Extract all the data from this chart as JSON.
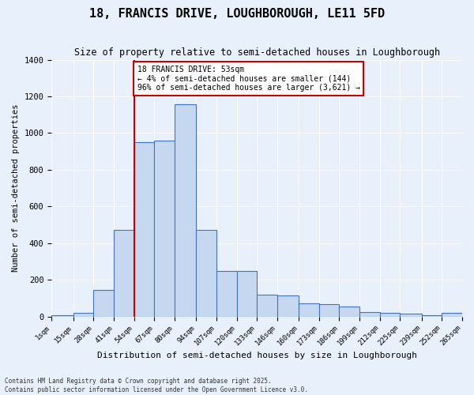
{
  "title": "18, FRANCIS DRIVE, LOUGHBOROUGH, LE11 5FD",
  "subtitle": "Size of property relative to semi-detached houses in Loughborough",
  "xlabel": "Distribution of semi-detached houses by size in Loughborough",
  "ylabel": "Number of semi-detached properties",
  "footnote1": "Contains HM Land Registry data © Crown copyright and database right 2025.",
  "footnote2": "Contains public sector information licensed under the Open Government Licence v3.0.",
  "bar_color": "#c5d8f0",
  "bar_edge_color": "#4472c4",
  "bg_color": "#e8f0fb",
  "grid_color": "#ffffff",
  "annotation_text": "18 FRANCIS DRIVE: 53sqm\n← 4% of semi-detached houses are smaller (144)\n96% of semi-detached houses are larger (3,621) →",
  "vline_x": 54,
  "vline_color": "#cc0000",
  "bins": [
    1,
    15,
    28,
    41,
    54,
    67,
    80,
    94,
    107,
    120,
    133,
    146,
    160,
    173,
    186,
    199,
    212,
    225,
    239,
    252,
    265
  ],
  "bin_labels": [
    "1sqm",
    "15sqm",
    "28sqm",
    "41sqm",
    "54sqm",
    "67sqm",
    "80sqm",
    "94sqm",
    "107sqm",
    "120sqm",
    "133sqm",
    "146sqm",
    "160sqm",
    "173sqm",
    "186sqm",
    "199sqm",
    "212sqm",
    "225sqm",
    "239sqm",
    "252sqm",
    "265sqm"
  ],
  "bar_heights": [
    5,
    20,
    145,
    470,
    950,
    960,
    1155,
    470,
    250,
    250,
    120,
    115,
    70,
    65,
    55,
    25,
    20,
    15,
    5,
    20
  ],
  "ylim": [
    0,
    1400
  ],
  "yticks": [
    0,
    200,
    400,
    600,
    800,
    1000,
    1200,
    1400
  ]
}
